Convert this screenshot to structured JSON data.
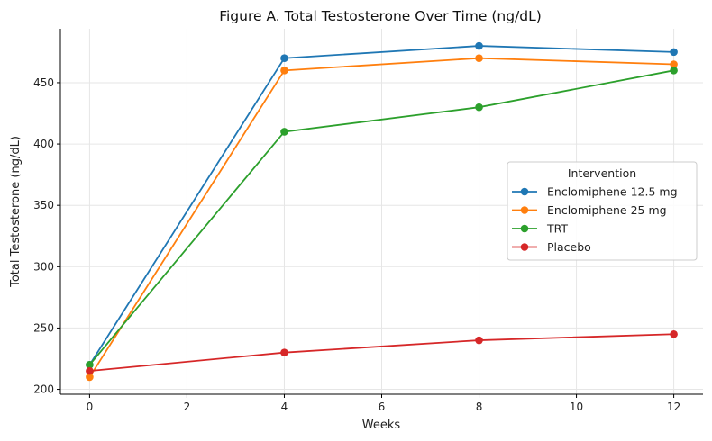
{
  "chart_data": {
    "type": "line",
    "title": "Figure A. Total Testosterone Over Time (ng/dL)",
    "xlabel": "Weeks",
    "ylabel": "Total Testosterone (ng/dL)",
    "x": [
      0,
      4,
      8,
      12
    ],
    "xlim": [
      -0.6,
      12.6
    ],
    "ylim": [
      196,
      494
    ],
    "xticks": [
      0,
      2,
      4,
      6,
      8,
      10,
      12
    ],
    "yticks": [
      200,
      250,
      300,
      350,
      400,
      450
    ],
    "grid": true,
    "legend": {
      "title": "Intervention",
      "placement": "center-right"
    },
    "series": [
      {
        "name": "Enclomiphene 12.5 mg",
        "color": "#1f77b4",
        "values": [
          220,
          470,
          480,
          475
        ]
      },
      {
        "name": "Enclomiphene 25 mg",
        "color": "#ff7f0e",
        "values": [
          210,
          460,
          470,
          465
        ]
      },
      {
        "name": "TRT",
        "color": "#2ca02c",
        "values": [
          220,
          410,
          430,
          460
        ]
      },
      {
        "name": "Placebo",
        "color": "#d62728",
        "values": [
          215,
          230,
          240,
          245
        ]
      }
    ]
  }
}
